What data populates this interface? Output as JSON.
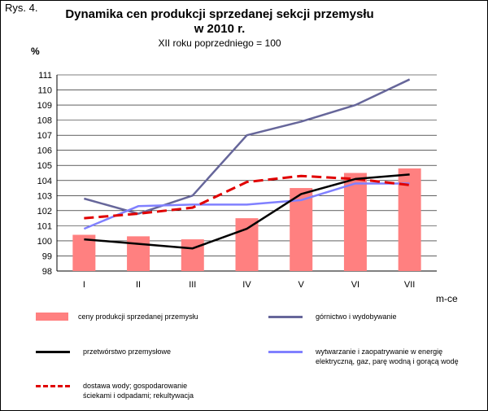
{
  "figure_label": "Rys. 4.",
  "chart_data": {
    "type": "bar+line",
    "title_line1": "Dynamika cen produkcji sprzedanej sekcji przemysłu",
    "title_line2": "w 2010 r.",
    "subtitle": "XII roku poprzedniego = 100",
    "ylabel": "%",
    "xlabel": "m-ce",
    "ylim": [
      98,
      111
    ],
    "yticks": [
      98,
      99,
      100,
      101,
      102,
      103,
      104,
      105,
      106,
      107,
      108,
      109,
      110,
      111
    ],
    "grid": true,
    "categories": [
      "I",
      "II",
      "III",
      "IV",
      "V",
      "VI",
      "VII"
    ],
    "bar_series": {
      "name": "ceny produkcji sprzedanej przemysłu",
      "color": "#ff8080",
      "values": [
        100.4,
        100.3,
        100.1,
        101.5,
        103.5,
        104.5,
        104.8
      ]
    },
    "line_series": [
      {
        "name": "górnictwo i wydobywanie",
        "color": "#66669a",
        "style": "solid",
        "values": [
          102.8,
          101.8,
          103.0,
          107.0,
          107.9,
          109.0,
          110.7
        ]
      },
      {
        "name": "przetwórstwo przemysłowe",
        "color": "#000000",
        "style": "solid",
        "values": [
          100.1,
          99.8,
          99.5,
          100.8,
          103.1,
          104.1,
          104.4
        ]
      },
      {
        "name": "wytwarzanie i zaopatrywanie w energię elektryczną, gaz, parę wodną i gorącą wodę",
        "color": "#8080ff",
        "style": "solid",
        "values": [
          100.8,
          102.3,
          102.4,
          102.4,
          102.7,
          103.8,
          103.8
        ]
      },
      {
        "name": "dostawa wody; gospodarowanie ściekami i odpadami; rekultywacja",
        "color": "#e00000",
        "style": "dashed",
        "values": [
          101.5,
          101.8,
          102.2,
          103.9,
          104.3,
          104.1,
          103.7
        ]
      }
    ],
    "legend": {
      "position": "bottom",
      "entries": [
        {
          "kind": "bar",
          "color": "#ff8080",
          "lines": [
            "ceny produkcji sprzedanej przemysłu"
          ]
        },
        {
          "kind": "line",
          "color": "#66669a",
          "style": "solid",
          "lines": [
            "górnictwo i wydobywanie"
          ]
        },
        {
          "kind": "line",
          "color": "#000000",
          "style": "solid",
          "lines": [
            "przetwórstwo przemysłowe"
          ]
        },
        {
          "kind": "line",
          "color": "#8080ff",
          "style": "solid",
          "lines": [
            "wytwarzanie  i zaopatrywanie w energię",
            "elektryczną, gaz, parę wodną i gorącą wodę"
          ]
        },
        {
          "kind": "line",
          "color": "#e00000",
          "style": "dashed",
          "lines": [
            "dostawa wody; gospodarowanie",
            "ściekami i odpadami; rekultywacja"
          ]
        }
      ]
    }
  }
}
